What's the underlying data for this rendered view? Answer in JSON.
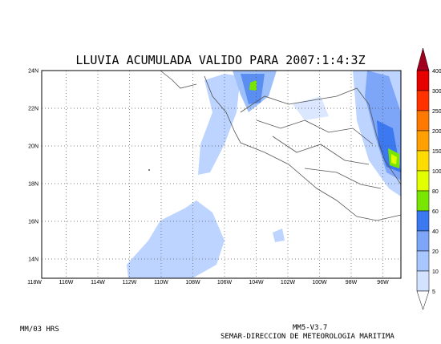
{
  "title": "LLUVIA ACUMULADA VALIDO PARA 2007:1:4:3Z",
  "lat_labels": [
    "24N",
    "22N",
    "20N",
    "18N",
    "16N",
    "14N"
  ],
  "lon_labels": [
    "118W",
    "116W",
    "114W",
    "112W",
    "110W",
    "108W",
    "106W",
    "104W",
    "102W",
    "100W",
    "98W",
    "96W"
  ],
  "colorbar": {
    "levels": [
      400,
      300,
      250,
      200,
      150,
      100,
      80,
      60,
      40,
      20,
      10,
      5
    ],
    "colors": [
      "#a0001e",
      "#e60000",
      "#ff3200",
      "#ff7800",
      "#ffa000",
      "#ffdc00",
      "#e1ff00",
      "#78e600",
      "#3c78f0",
      "#7ea6f8",
      "#a8c6ff",
      "#d2e2ff",
      "#ffffff"
    ]
  },
  "footer": {
    "left": "MM/03 HRS",
    "model": "MM5-V3.7",
    "credit": "SEMAR-DIRECCION DE METEOROLOGIA MARITIMA"
  }
}
